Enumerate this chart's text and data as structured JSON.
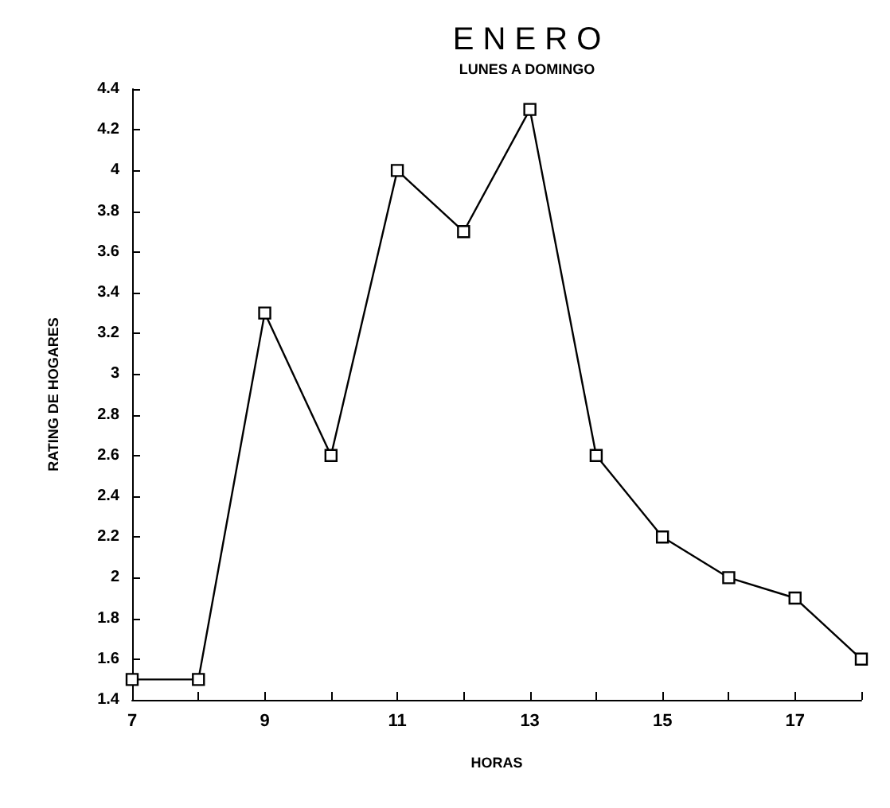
{
  "chart_data": {
    "type": "line",
    "title": "E N E R O",
    "subtitle": "LUNES A DOMINGO",
    "xlabel": "HORAS",
    "ylabel": "RATING DE HOGARES",
    "x": [
      7,
      8,
      9,
      10,
      11,
      12,
      13,
      14,
      15,
      16,
      17,
      18
    ],
    "values": [
      1.5,
      1.5,
      3.3,
      2.6,
      4.0,
      3.7,
      4.3,
      2.6,
      2.2,
      2.0,
      1.9,
      1.6
    ],
    "color": "#000000",
    "marker": "square",
    "line_style": "solid",
    "xlim": [
      7,
      18
    ],
    "xticks": [
      7,
      {
        "value": 8,
        "label": null
      },
      9,
      {
        "value": 10,
        "label": null
      },
      11,
      {
        "value": 12,
        "label": null
      },
      13,
      {
        "value": 14,
        "label": null
      },
      15,
      {
        "value": 16,
        "label": null
      },
      17,
      {
        "value": 18,
        "label": null
      }
    ],
    "ylim": [
      1.4,
      4.4
    ],
    "yticks": [
      1.4,
      1.6,
      1.8,
      2,
      2.2,
      2.4,
      2.6,
      2.8,
      3,
      3.2,
      3.4,
      3.6,
      3.8,
      4,
      4.2,
      4.4
    ]
  }
}
